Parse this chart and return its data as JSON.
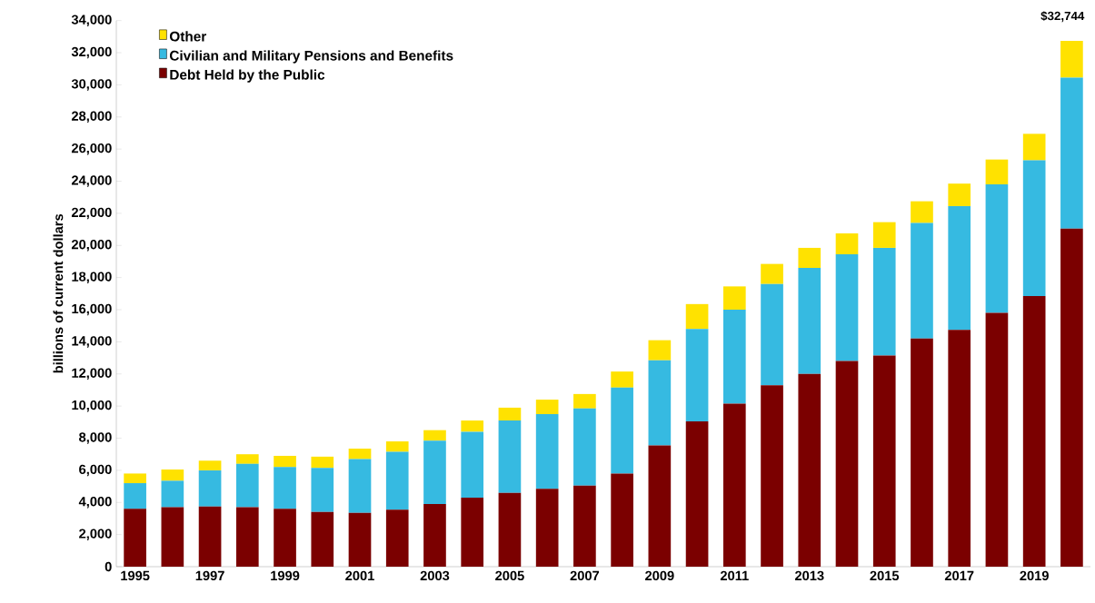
{
  "chart_data": {
    "type": "bar",
    "stacked": true,
    "ylabel": "billions of current dollars",
    "categories": [
      "1995",
      null,
      "1997",
      null,
      "1999",
      null,
      "2001",
      null,
      "2003",
      null,
      "2005",
      null,
      "2007",
      null,
      "2009",
      null,
      "2011",
      null,
      "2013",
      null,
      "2015",
      null,
      "2017",
      null,
      "2019",
      null
    ],
    "series": [
      {
        "name": "Debt Held by the Public",
        "color": "#7b0000",
        "values": [
          3600,
          3700,
          3750,
          3700,
          3600,
          3400,
          3350,
          3550,
          3900,
          4300,
          4600,
          4850,
          5050,
          5800,
          7550,
          9050,
          10150,
          11300,
          12000,
          12800,
          13150,
          14200,
          14750,
          15800,
          16850,
          21050
        ]
      },
      {
        "name": "Civilian and Military Pensions and Benefits",
        "color": "#36bae1",
        "values": [
          1600,
          1650,
          2250,
          2700,
          2600,
          2750,
          3350,
          3600,
          3950,
          4100,
          4500,
          4650,
          4800,
          5350,
          5300,
          5750,
          5850,
          6300,
          6600,
          6650,
          6700,
          7200,
          7700,
          8000,
          8450,
          9400
        ]
      },
      {
        "name": "Other",
        "color": "#ffe200",
        "values": [
          600,
          700,
          600,
          600,
          700,
          700,
          650,
          650,
          650,
          700,
          800,
          900,
          900,
          1000,
          1250,
          1550,
          1450,
          1250,
          1250,
          1300,
          1600,
          1350,
          1400,
          1550,
          1650,
          2294
        ]
      }
    ],
    "ylim": [
      0,
      34000
    ],
    "yticks": [
      {
        "value": 0,
        "label": "0"
      },
      {
        "value": 2000,
        "label": "2,000"
      },
      {
        "value": 4000,
        "label": "4,000"
      },
      {
        "value": 6000,
        "label": "6,000"
      },
      {
        "value": 8000,
        "label": "8,000"
      },
      {
        "value": 10000,
        "label": "10,000"
      },
      {
        "value": 12000,
        "label": "12,000"
      },
      {
        "value": 14000,
        "label": "14,000"
      },
      {
        "value": 16000,
        "label": "16,000"
      },
      {
        "value": 18000,
        "label": "18,000"
      },
      {
        "value": 20000,
        "label": "20,000"
      },
      {
        "value": 22000,
        "label": "22,000"
      },
      {
        "value": 24000,
        "label": "24,000"
      },
      {
        "value": 26000,
        "label": "26,000"
      },
      {
        "value": 28000,
        "label": "28,000"
      },
      {
        "value": 30000,
        "label": "30,000"
      },
      {
        "value": 32000,
        "label": "32,000"
      },
      {
        "value": 34000,
        "label": "34,000"
      }
    ],
    "annotations": [
      "$32,744"
    ],
    "legend": "top left",
    "grid": false
  }
}
